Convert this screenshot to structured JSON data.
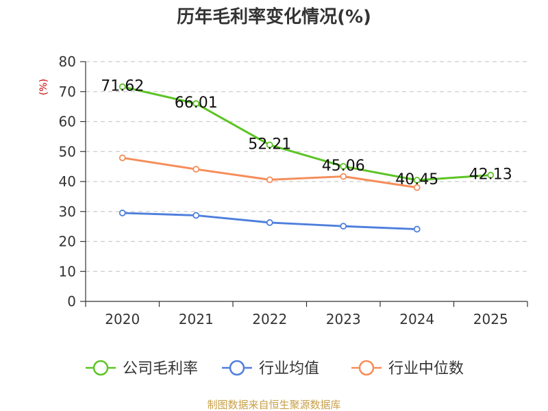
{
  "chart_data": {
    "type": "line",
    "title": "历年毛利率变化情况(%)",
    "ylabel": "(%)",
    "xlabel": "",
    "categories": [
      "2020",
      "2021",
      "2022",
      "2023",
      "2024",
      "2025"
    ],
    "ylim": [
      0,
      80
    ],
    "yticks": [
      0,
      10,
      20,
      30,
      40,
      50,
      60,
      70,
      80
    ],
    "grid": true,
    "legend_position": "bottom",
    "series": [
      {
        "name": "公司毛利率",
        "color": "#5cc424",
        "values": [
          71.62,
          66.01,
          52.21,
          45.06,
          40.45,
          42.13
        ],
        "labels": [
          "71.62",
          "66.01",
          "52.21",
          "45.06",
          "40.45",
          "42.13"
        ]
      },
      {
        "name": "行业均值",
        "color": "#4e7fdc",
        "values": [
          29.5,
          28.7,
          26.3,
          25.1,
          24.1,
          null
        ]
      },
      {
        "name": "行业中位数",
        "color": "#f58d5a",
        "values": [
          47.9,
          44.1,
          40.6,
          41.7,
          38.0,
          null
        ]
      }
    ]
  },
  "source": "制图数据来自恒生聚源数据库",
  "colors": {
    "ylabel": "#cc0000",
    "source": "#c8a04a",
    "axis": "#333333",
    "grid": "#cccccc"
  }
}
